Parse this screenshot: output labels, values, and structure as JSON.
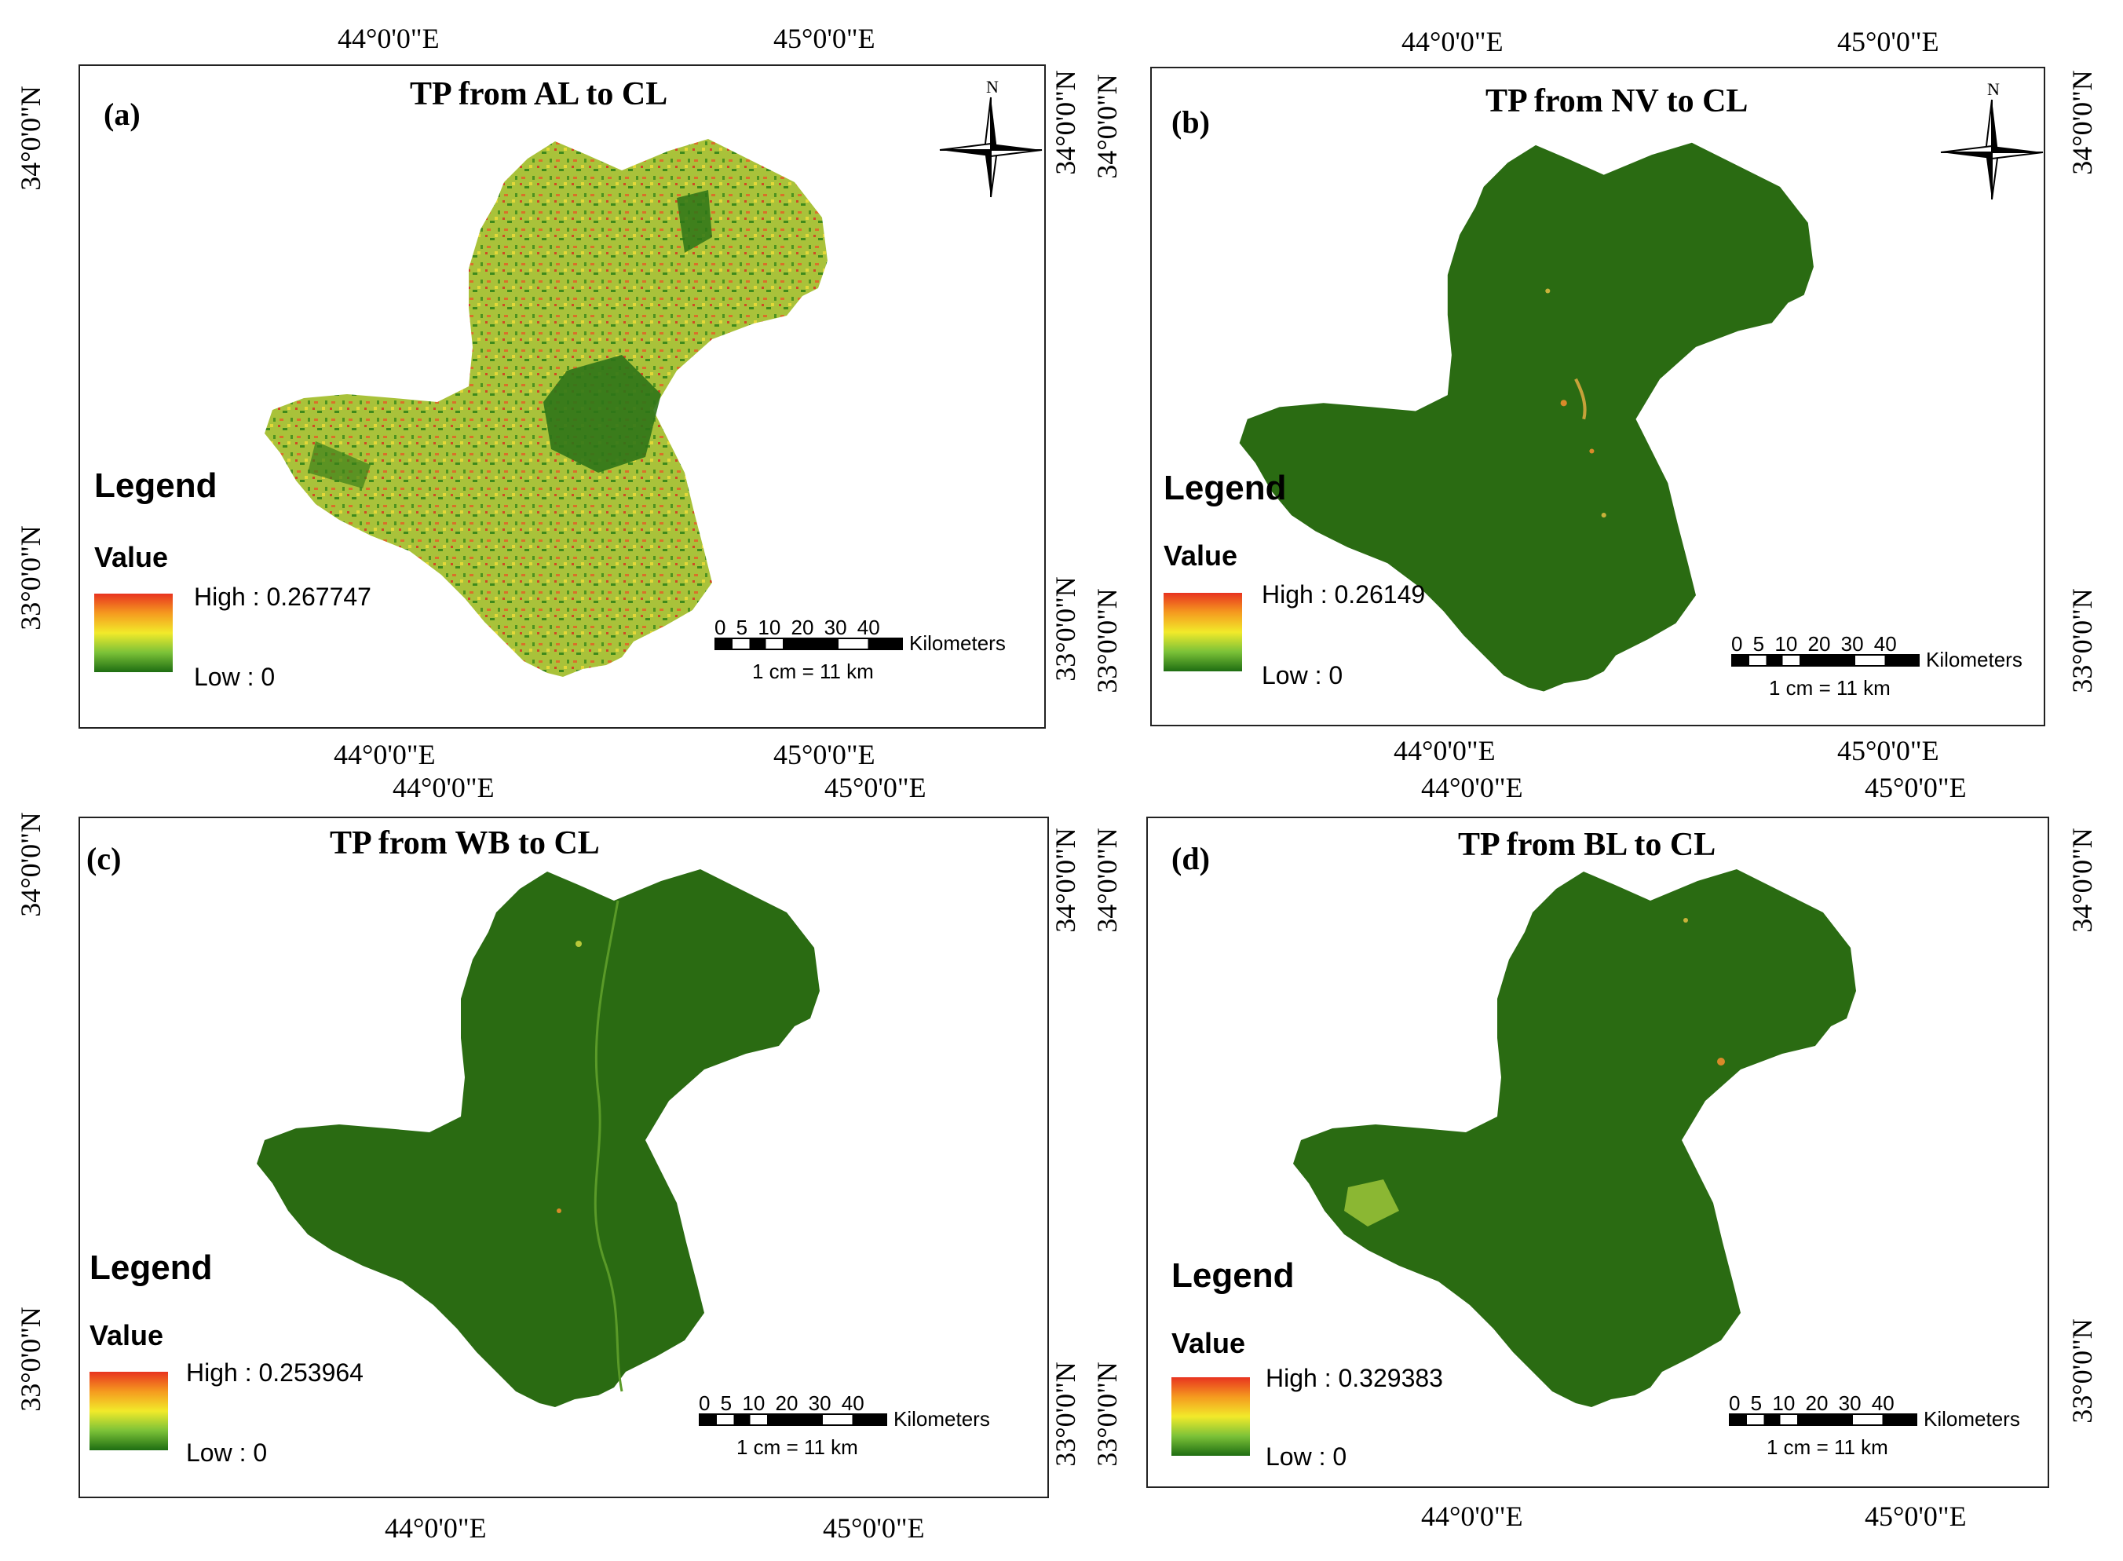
{
  "coordinates": {
    "lon_44": "44°0'0\"E",
    "lon_45": "45°0'0\"E",
    "lat_34": "34°0'0\"N",
    "lat_33": "33°0'0\"N"
  },
  "colors": {
    "high": "#e8331f",
    "mid": "#f2ea2a",
    "low": "#1e6d12",
    "region_green": "#2a6b12"
  },
  "panels": [
    {
      "letter": "(a)",
      "title": "TP from AL to CL",
      "legend_title": "Legend",
      "value_title": "Value",
      "high": "High : 0.267747",
      "low": "Low : 0"
    },
    {
      "letter": "(b)",
      "title": "TP from NV to CL",
      "legend_title": "Legend",
      "value_title": "Value",
      "high": "High : 0.26149",
      "low": "Low : 0"
    },
    {
      "letter": "(c)",
      "title": "TP from WB to CL",
      "legend_title": "Legend",
      "value_title": "Value",
      "high": "High : 0.253964",
      "low": "Low : 0"
    },
    {
      "letter": "(d)",
      "title": "TP from BL to CL",
      "legend_title": "Legend",
      "value_title": "Value",
      "high": "High : 0.329383",
      "low": "Low : 0"
    }
  ],
  "scale": {
    "ticks": "0 5 10 20 30 40",
    "unit": "Kilometers",
    "ratio": "1 cm = 11 km"
  },
  "north_label": "N"
}
